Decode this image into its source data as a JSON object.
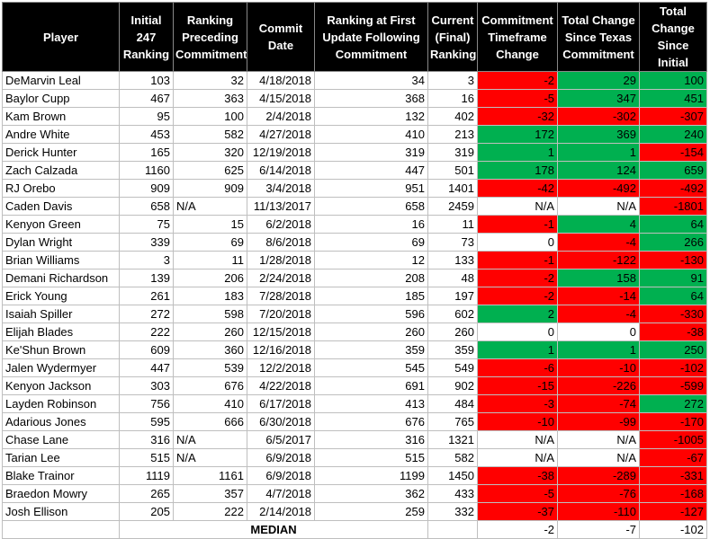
{
  "headers": [
    "Player",
    "Initial 247 Ranking",
    "Ranking Preceding Commitment",
    "Commit Date",
    "Ranking at First Update Following Commitment",
    "Current (Final) Ranking",
    "Commitment Timeframe Change",
    "Total Change Since Texas Commitment",
    "Total Change Since Initial"
  ],
  "colors": {
    "red": "#ff0000",
    "green": "#00b050",
    "header_bg": "#000000"
  },
  "rows": [
    {
      "player": "DeMarvin Leal",
      "initial": "103",
      "preceding": "32",
      "commit_date": "4/18/2018",
      "first_update": "34",
      "current": "3",
      "tf_change": "-2",
      "tf_color": "red",
      "tx_change": "29",
      "tx_color": "green",
      "total": "100",
      "total_color": "green"
    },
    {
      "player": "Baylor Cupp",
      "initial": "467",
      "preceding": "363",
      "commit_date": "4/15/2018",
      "first_update": "368",
      "current": "16",
      "tf_change": "-5",
      "tf_color": "red",
      "tx_change": "347",
      "tx_color": "green",
      "total": "451",
      "total_color": "green"
    },
    {
      "player": "Kam Brown",
      "initial": "95",
      "preceding": "100",
      "commit_date": "2/4/2018",
      "first_update": "132",
      "current": "402",
      "tf_change": "-32",
      "tf_color": "red",
      "tx_change": "-302",
      "tx_color": "red",
      "total": "-307",
      "total_color": "red"
    },
    {
      "player": "Andre White",
      "initial": "453",
      "preceding": "582",
      "commit_date": "4/27/2018",
      "first_update": "410",
      "current": "213",
      "tf_change": "172",
      "tf_color": "green",
      "tx_change": "369",
      "tx_color": "green",
      "total": "240",
      "total_color": "green"
    },
    {
      "player": "Derick Hunter",
      "initial": "165",
      "preceding": "320",
      "commit_date": "12/19/2018",
      "first_update": "319",
      "current": "319",
      "tf_change": "1",
      "tf_color": "green",
      "tx_change": "1",
      "tx_color": "green",
      "total": "-154",
      "total_color": "red"
    },
    {
      "player": "Zach Calzada",
      "initial": "1160",
      "preceding": "625",
      "commit_date": "6/14/2018",
      "first_update": "447",
      "current": "501",
      "tf_change": "178",
      "tf_color": "green",
      "tx_change": "124",
      "tx_color": "green",
      "total": "659",
      "total_color": "green"
    },
    {
      "player": "RJ Orebo",
      "initial": "909",
      "preceding": "909",
      "commit_date": "3/4/2018",
      "first_update": "951",
      "current": "1401",
      "tf_change": "-42",
      "tf_color": "red",
      "tx_change": "-492",
      "tx_color": "red",
      "total": "-492",
      "total_color": "red"
    },
    {
      "player": "Caden Davis",
      "initial": "658",
      "initial_note": "N/A",
      "preceding": "",
      "commit_date": "11/13/2017",
      "first_update": "658",
      "current": "2459",
      "tf_change": "N/A",
      "tf_color": "none",
      "tx_change": "N/A",
      "tx_color": "none",
      "total": "-1801",
      "total_color": "red"
    },
    {
      "player": "Kenyon Green",
      "initial": "75",
      "preceding": "15",
      "commit_date": "6/2/2018",
      "first_update": "16",
      "current": "11",
      "tf_change": "-1",
      "tf_color": "red",
      "tx_change": "4",
      "tx_color": "green",
      "total": "64",
      "total_color": "green"
    },
    {
      "player": "Dylan Wright",
      "initial": "339",
      "preceding": "69",
      "commit_date": "8/6/2018",
      "first_update": "69",
      "current": "73",
      "tf_change": "0",
      "tf_color": "none",
      "tx_change": "-4",
      "tx_color": "red",
      "total": "266",
      "total_color": "green"
    },
    {
      "player": "Brian Williams",
      "initial": "3",
      "preceding": "11",
      "commit_date": "1/28/2018",
      "first_update": "12",
      "current": "133",
      "tf_change": "-1",
      "tf_color": "red",
      "tx_change": "-122",
      "tx_color": "red",
      "total": "-130",
      "total_color": "red"
    },
    {
      "player": "Demani Richardson",
      "initial": "139",
      "preceding": "206",
      "commit_date": "2/24/2018",
      "first_update": "208",
      "current": "48",
      "tf_change": "-2",
      "tf_color": "red",
      "tx_change": "158",
      "tx_color": "green",
      "total": "91",
      "total_color": "green"
    },
    {
      "player": "Erick Young",
      "initial": "261",
      "preceding": "183",
      "commit_date": "7/28/2018",
      "first_update": "185",
      "current": "197",
      "tf_change": "-2",
      "tf_color": "red",
      "tx_change": "-14",
      "tx_color": "red",
      "total": "64",
      "total_color": "green"
    },
    {
      "player": "Isaiah Spiller",
      "initial": "272",
      "preceding": "598",
      "commit_date": "7/20/2018",
      "first_update": "596",
      "current": "602",
      "tf_change": "2",
      "tf_color": "green",
      "tx_change": "-4",
      "tx_color": "red",
      "total": "-330",
      "total_color": "red"
    },
    {
      "player": "Elijah Blades",
      "initial": "222",
      "preceding": "260",
      "commit_date": "12/15/2018",
      "first_update": "260",
      "current": "260",
      "tf_change": "0",
      "tf_color": "none",
      "tx_change": "0",
      "tx_color": "none",
      "total": "-38",
      "total_color": "red"
    },
    {
      "player": "Ke'Shun Brown",
      "initial": "609",
      "preceding": "360",
      "commit_date": "12/16/2018",
      "first_update": "359",
      "current": "359",
      "tf_change": "1",
      "tf_color": "green",
      "tx_change": "1",
      "tx_color": "green",
      "total": "250",
      "total_color": "green"
    },
    {
      "player": "Jalen Wydermyer",
      "initial": "447",
      "preceding": "539",
      "commit_date": "12/2/2018",
      "first_update": "545",
      "current": "549",
      "tf_change": "-6",
      "tf_color": "red",
      "tx_change": "-10",
      "tx_color": "red",
      "total": "-102",
      "total_color": "red"
    },
    {
      "player": "Kenyon Jackson",
      "initial": "303",
      "preceding": "676",
      "commit_date": "4/22/2018",
      "first_update": "691",
      "current": "902",
      "tf_change": "-15",
      "tf_color": "red",
      "tx_change": "-226",
      "tx_color": "red",
      "total": "-599",
      "total_color": "red"
    },
    {
      "player": "Layden Robinson",
      "initial": "756",
      "preceding": "410",
      "commit_date": "6/17/2018",
      "first_update": "413",
      "current": "484",
      "tf_change": "-3",
      "tf_color": "red",
      "tx_change": "-74",
      "tx_color": "red",
      "total": "272",
      "total_color": "green"
    },
    {
      "player": "Adarious Jones",
      "initial": "595",
      "preceding": "666",
      "commit_date": "6/30/2018",
      "first_update": "676",
      "current": "765",
      "tf_change": "-10",
      "tf_color": "red",
      "tx_change": "-99",
      "tx_color": "red",
      "total": "-170",
      "total_color": "red"
    },
    {
      "player": "Chase Lane",
      "initial": "316",
      "initial_note": "N/A",
      "preceding": "",
      "commit_date": "6/5/2017",
      "first_update": "316",
      "current": "1321",
      "tf_change": "N/A",
      "tf_color": "none",
      "tx_change": "N/A",
      "tx_color": "none",
      "total": "-1005",
      "total_color": "red"
    },
    {
      "player": "Tarian Lee",
      "initial": "515",
      "initial_note": "N/A",
      "preceding": "",
      "commit_date": "6/9/2018",
      "first_update": "515",
      "current": "582",
      "tf_change": "N/A",
      "tf_color": "none",
      "tx_change": "N/A",
      "tx_color": "none",
      "total": "-67",
      "total_color": "red"
    },
    {
      "player": "Blake Trainor",
      "initial": "1119",
      "preceding": "1161",
      "commit_date": "6/9/2018",
      "first_update": "1199",
      "current": "1450",
      "tf_change": "-38",
      "tf_color": "red",
      "tx_change": "-289",
      "tx_color": "red",
      "total": "-331",
      "total_color": "red"
    },
    {
      "player": "Braedon Mowry",
      "initial": "265",
      "preceding": "357",
      "commit_date": "4/7/2018",
      "first_update": "362",
      "current": "433",
      "tf_change": "-5",
      "tf_color": "red",
      "tx_change": "-76",
      "tx_color": "red",
      "total": "-168",
      "total_color": "red"
    },
    {
      "player": "Josh Ellison",
      "initial": "205",
      "preceding": "222",
      "commit_date": "2/14/2018",
      "first_update": "259",
      "current": "332",
      "tf_change": "-37",
      "tf_color": "red",
      "tx_change": "-110",
      "tx_color": "red",
      "total": "-127",
      "total_color": "red"
    }
  ],
  "median": {
    "label": "MEDIAN",
    "tf_change": "-2",
    "tx_change": "-7",
    "total": "-102"
  }
}
